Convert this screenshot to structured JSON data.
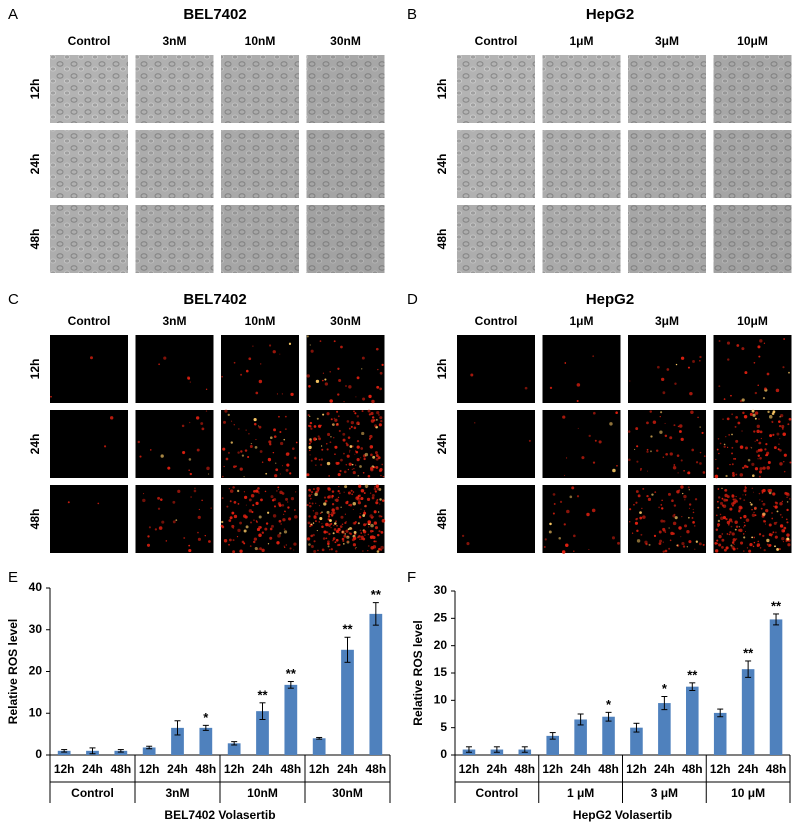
{
  "panels": [
    {
      "letter": "A",
      "title": "BEL7402",
      "columns": [
        "Control",
        "3nM",
        "10nM",
        "30nM"
      ],
      "rows": [
        "12h",
        "24h",
        "48h"
      ]
    },
    {
      "letter": "B",
      "title": "HepG2",
      "columns": [
        "Control",
        "1μM",
        "3μM",
        "10μM"
      ],
      "rows": [
        "12h",
        "24h",
        "48h"
      ]
    },
    {
      "letter": "C",
      "title": "BEL7402",
      "columns": [
        "Control",
        "3nM",
        "10nM",
        "30nM"
      ],
      "rows": [
        "12h",
        "24h",
        "48h"
      ]
    },
    {
      "letter": "D",
      "title": "HepG2",
      "columns": [
        "Control",
        "1μM",
        "3μM",
        "10μM"
      ],
      "rows": [
        "12h",
        "24h",
        "48h"
      ]
    }
  ],
  "chart_data": [
    {
      "type": "bar",
      "letter": "E",
      "xlabel": "BEL7402  Volasertib",
      "ylabel": "Relative ROS  level",
      "categories": [
        "12h",
        "24h",
        "48h",
        "12h",
        "24h",
        "48h",
        "12h",
        "24h",
        "48h",
        "12h",
        "24h",
        "48h"
      ],
      "groups": [
        "Control",
        "3nM",
        "10nM",
        "30nM"
      ],
      "values": [
        1,
        1,
        1,
        1.8,
        6.5,
        6.5,
        2.8,
        10.5,
        16.8,
        4,
        25.2,
        33.8
      ],
      "errors": [
        0.3,
        0.7,
        0.3,
        0.3,
        1.7,
        0.6,
        0.4,
        2,
        0.8,
        0.2,
        3,
        2.7
      ],
      "annotations": [
        null,
        null,
        null,
        null,
        null,
        "*",
        null,
        "**",
        "**",
        null,
        "**",
        "**"
      ],
      "color": "#4f81bd",
      "ylim": [
        0,
        40
      ],
      "yticks": [
        0,
        10,
        20,
        30,
        40
      ]
    },
    {
      "type": "bar",
      "letter": "F",
      "xlabel": "HepG2  Volasertib",
      "ylabel": "Relative ROS  level",
      "categories": [
        "12h",
        "24h",
        "48h",
        "12h",
        "24h",
        "48h",
        "12h",
        "24h",
        "48h",
        "12h",
        "24h",
        "48h"
      ],
      "groups": [
        "Control",
        "1 μM",
        "3 μM",
        "10 μM"
      ],
      "values": [
        1,
        1,
        1,
        3.5,
        6.5,
        7,
        5,
        9.5,
        12.5,
        7.7,
        15.7,
        24.8
      ],
      "errors": [
        0.5,
        0.5,
        0.5,
        0.6,
        1,
        0.8,
        0.8,
        1.2,
        0.7,
        0.7,
        1.5,
        1
      ],
      "annotations": [
        null,
        null,
        null,
        null,
        null,
        "*",
        null,
        "*",
        "**",
        null,
        "**",
        "**"
      ],
      "color": "#4f81bd",
      "ylim": [
        0,
        30
      ],
      "yticks": [
        0,
        5,
        10,
        15,
        20,
        25,
        30
      ]
    }
  ]
}
